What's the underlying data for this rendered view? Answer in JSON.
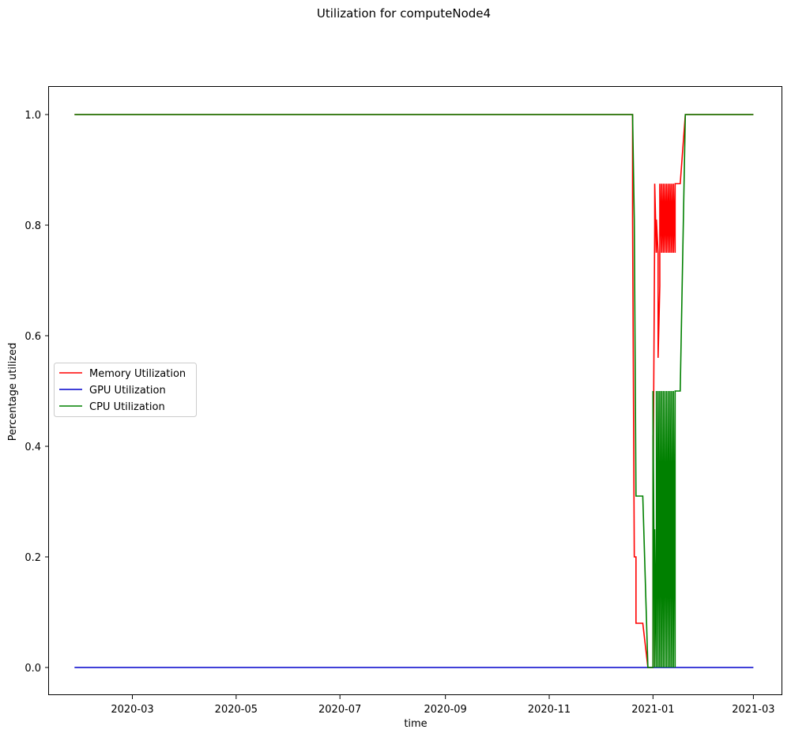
{
  "chart_data": {
    "type": "line",
    "title": "Utilization for computeNode4",
    "xlabel": "time",
    "ylabel": "Percentage utilized",
    "ylim": [
      -0.05,
      1.05
    ],
    "xlim": [
      "2020-01-12",
      "2021-03-18"
    ],
    "x_ticks": [
      "2020-03",
      "2020-05",
      "2020-07",
      "2020-09",
      "2020-11",
      "2021-01",
      "2021-03"
    ],
    "y_ticks": [
      "0.0",
      "0.2",
      "0.4",
      "0.6",
      "0.8",
      "1.0"
    ],
    "legend": {
      "placement": "center-left"
    },
    "grid": false,
    "series": [
      {
        "name": "Memory Utilization",
        "color": "#ff0000",
        "points": [
          [
            "2020-01-27",
            1.0
          ],
          [
            "2020-12-20",
            1.0
          ],
          [
            "2020-12-20",
            0.81
          ],
          [
            "2020-12-21",
            0.2
          ],
          [
            "2020-12-22",
            0.2
          ],
          [
            "2020-12-22",
            0.08
          ],
          [
            "2020-12-26",
            0.08
          ],
          [
            "2020-12-26",
            0.08
          ],
          [
            "2020-12-29",
            0.0
          ],
          [
            "2021-01-01",
            0.0
          ],
          [
            "2021-01-01",
            0.42
          ],
          [
            "2021-01-01",
            0.28
          ],
          [
            "2021-01-02",
            0.8
          ],
          [
            "2021-01-02",
            0.75
          ],
          [
            "2021-01-02",
            0.875
          ],
          [
            "2021-01-03",
            0.75
          ],
          [
            "2021-01-03",
            0.81
          ],
          [
            "2021-01-04",
            0.75
          ],
          [
            "2021-01-04",
            0.56
          ],
          [
            "2021-01-05",
            0.69
          ],
          [
            "2021-01-05",
            0.875
          ],
          [
            "2021-01-06",
            0.75
          ],
          [
            "2021-01-06",
            0.875
          ],
          [
            "2021-01-07",
            0.75
          ],
          [
            "2021-01-07",
            0.875
          ],
          [
            "2021-01-08",
            0.75
          ],
          [
            "2021-01-08",
            0.875
          ],
          [
            "2021-01-09",
            0.75
          ],
          [
            "2021-01-09",
            0.875
          ],
          [
            "2021-01-10",
            0.75
          ],
          [
            "2021-01-10",
            0.875
          ],
          [
            "2021-01-11",
            0.75
          ],
          [
            "2021-01-11",
            0.875
          ],
          [
            "2021-01-12",
            0.75
          ],
          [
            "2021-01-12",
            0.875
          ],
          [
            "2021-01-13",
            0.75
          ],
          [
            "2021-01-13",
            0.875
          ],
          [
            "2021-01-14",
            0.75
          ],
          [
            "2021-01-14",
            0.875
          ],
          [
            "2021-01-15",
            0.875
          ],
          [
            "2021-01-17",
            0.875
          ],
          [
            "2021-01-20",
            1.0
          ],
          [
            "2021-03-01",
            1.0
          ]
        ]
      },
      {
        "name": "GPU Utilization",
        "color": "#0000cc",
        "points": [
          [
            "2020-01-27",
            0.0
          ],
          [
            "2021-03-01",
            0.0
          ]
        ]
      },
      {
        "name": "CPU Utilization",
        "color": "#008000",
        "points": [
          [
            "2020-01-27",
            1.0
          ],
          [
            "2020-12-20",
            1.0
          ],
          [
            "2020-12-21",
            0.81
          ],
          [
            "2020-12-22",
            0.31
          ],
          [
            "2020-12-26",
            0.31
          ],
          [
            "2020-12-26",
            0.31
          ],
          [
            "2020-12-29",
            0.0
          ],
          [
            "2021-01-01",
            0.0
          ],
          [
            "2021-01-01",
            0.5
          ],
          [
            "2021-01-02",
            0.0
          ],
          [
            "2021-01-02",
            0.25
          ],
          [
            "2021-01-03",
            0.0
          ],
          [
            "2021-01-03",
            0.5
          ],
          [
            "2021-01-04",
            0.0
          ],
          [
            "2021-01-04",
            0.5
          ],
          [
            "2021-01-05",
            0.0
          ],
          [
            "2021-01-05",
            0.5
          ],
          [
            "2021-01-06",
            0.0
          ],
          [
            "2021-01-06",
            0.5
          ],
          [
            "2021-01-07",
            0.0
          ],
          [
            "2021-01-07",
            0.5
          ],
          [
            "2021-01-08",
            0.0
          ],
          [
            "2021-01-08",
            0.5
          ],
          [
            "2021-01-09",
            0.0
          ],
          [
            "2021-01-09",
            0.5
          ],
          [
            "2021-01-10",
            0.0
          ],
          [
            "2021-01-10",
            0.5
          ],
          [
            "2021-01-11",
            0.0
          ],
          [
            "2021-01-11",
            0.5
          ],
          [
            "2021-01-12",
            0.0
          ],
          [
            "2021-01-12",
            0.5
          ],
          [
            "2021-01-13",
            0.0
          ],
          [
            "2021-01-13",
            0.5
          ],
          [
            "2021-01-14",
            0.0
          ],
          [
            "2021-01-14",
            0.5
          ],
          [
            "2021-01-17",
            0.5
          ],
          [
            "2021-01-20",
            1.0
          ],
          [
            "2021-03-01",
            1.0
          ]
        ]
      }
    ]
  }
}
